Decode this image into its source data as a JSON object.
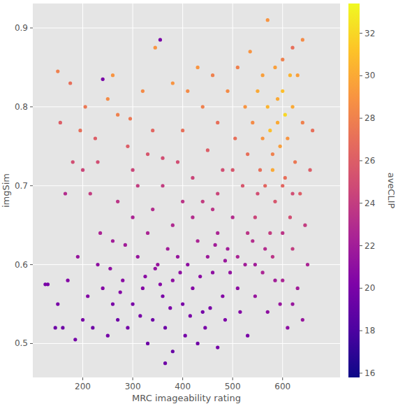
{
  "chart_data": {
    "type": "scatter",
    "x_label": "MRC imageability rating",
    "y_label": "imgSim",
    "xlim": [
      100,
      715
    ],
    "ylim": [
      0.457,
      0.931
    ],
    "xticks": [
      200,
      300,
      400,
      500,
      600
    ],
    "yticks": [
      0.5,
      0.6,
      0.7,
      0.8,
      0.9
    ],
    "grid": true,
    "marker": "circle",
    "colorbar": {
      "label": "aveCLIP",
      "range": [
        15.8,
        33.4
      ],
      "ticks": [
        16,
        18,
        20,
        22,
        24,
        26,
        28,
        30,
        32
      ]
    },
    "x": [
      300,
      320,
      340,
      360,
      380,
      400,
      420,
      440,
      460,
      480,
      350,
      370,
      390,
      410,
      430,
      450,
      470,
      490,
      310,
      330,
      280,
      260,
      240,
      270,
      290,
      365,
      405,
      445,
      485,
      510,
      525,
      540,
      500,
      460,
      420,
      380,
      340,
      300,
      260,
      230,
      210,
      200,
      220,
      250,
      330,
      380,
      430,
      470,
      395,
      355,
      315,
      435,
      455,
      375,
      345,
      285,
      495,
      515,
      545,
      560,
      580,
      600,
      620,
      570,
      595,
      610,
      235,
      190,
      170,
      150,
      130,
      160,
      185,
      165,
      180,
      195,
      155,
      150,
      175,
      205,
      225,
      250,
      270,
      295,
      320,
      260,
      240,
      345,
      355,
      300,
      330,
      360,
      390,
      420,
      450,
      480,
      400,
      440,
      470,
      380,
      490,
      505,
      520,
      530,
      540,
      550,
      560,
      570,
      580,
      590,
      600,
      610,
      620,
      630,
      640,
      565,
      585,
      605,
      625,
      545,
      575,
      615,
      635,
      555,
      595,
      575,
      590,
      570,
      600,
      620,
      640,
      660,
      655,
      645,
      650,
      630,
      640,
      560,
      535,
      510,
      525,
      585,
      615,
      605,
      580,
      550,
      600,
      620,
      125,
      145,
      270,
      215,
      200,
      230,
      310,
      340,
      290,
      410,
      430,
      460,
      500,
      470,
      440,
      400,
      360,
      530,
      510,
      530,
      365,
      600,
      565,
      585,
      415,
      325,
      275,
      255,
      465,
      485,
      545,
      620
    ],
    "y": [
      0.55,
      0.57,
      0.53,
      0.56,
      0.58,
      0.55,
      0.57,
      0.54,
      0.59,
      0.56,
      0.6,
      0.62,
      0.61,
      0.6,
      0.63,
      0.61,
      0.64,
      0.62,
      0.61,
      0.64,
      0.58,
      0.55,
      0.57,
      0.53,
      0.52,
      0.52,
      0.51,
      0.52,
      0.53,
      0.57,
      0.6,
      0.63,
      0.66,
      0.67,
      0.66,
      0.65,
      0.67,
      0.66,
      0.63,
      0.6,
      0.56,
      0.53,
      0.52,
      0.51,
      0.5,
      0.49,
      0.5,
      0.495,
      0.59,
      0.575,
      0.535,
      0.585,
      0.545,
      0.545,
      0.595,
      0.625,
      0.59,
      0.54,
      0.56,
      0.59,
      0.61,
      0.58,
      0.62,
      0.54,
      0.55,
      0.52,
      0.64,
      0.61,
      0.58,
      0.55,
      0.575,
      0.52,
      0.505,
      0.69,
      0.73,
      0.77,
      0.78,
      0.845,
      0.83,
      0.8,
      0.76,
      0.81,
      0.79,
      0.785,
      0.82,
      0.84,
      0.835,
      0.875,
      0.885,
      0.72,
      0.74,
      0.7,
      0.73,
      0.71,
      0.745,
      0.72,
      0.77,
      0.8,
      0.78,
      0.83,
      0.82,
      0.76,
      0.7,
      0.74,
      0.78,
      0.82,
      0.76,
      0.8,
      0.74,
      0.78,
      0.82,
      0.76,
      0.8,
      0.84,
      0.78,
      0.7,
      0.68,
      0.71,
      0.73,
      0.66,
      0.64,
      0.66,
      0.69,
      0.72,
      0.75,
      0.77,
      0.81,
      0.91,
      0.86,
      0.875,
      0.885,
      0.77,
      0.72,
      0.65,
      0.6,
      0.57,
      0.53,
      0.84,
      0.87,
      0.85,
      0.8,
      0.85,
      0.84,
      0.79,
      0.72,
      0.69,
      0.7,
      0.69,
      0.575,
      0.52,
      0.68,
      0.69,
      0.72,
      0.73,
      0.7,
      0.77,
      0.75,
      0.82,
      0.85,
      0.84,
      0.72,
      0.69,
      0.68,
      0.68,
      0.735,
      0.64,
      0.61,
      0.51,
      0.475,
      0.64,
      0.62,
      0.58,
      0.535,
      0.585,
      0.565,
      0.595,
      0.625,
      0.605,
      0.6,
      0.55
    ],
    "c": [
      20,
      20.5,
      19.5,
      20,
      21,
      20,
      20.5,
      19.8,
      21,
      20.5,
      21.5,
      22,
      21.5,
      21,
      22.5,
      21.8,
      22.5,
      22,
      21.5,
      22.5,
      20.8,
      20,
      20.5,
      19.5,
      19.8,
      19.5,
      19.8,
      20,
      20.2,
      21,
      22,
      23,
      23,
      23.5,
      23,
      22.8,
      23,
      22.5,
      22,
      21,
      20.5,
      20,
      19.5,
      19.8,
      19.5,
      19.2,
      19.6,
      19.8,
      21,
      20.6,
      19.9,
      20.8,
      20,
      20.1,
      21.2,
      22,
      21.2,
      20.5,
      21.5,
      22.5,
      23.5,
      22.5,
      24,
      21,
      21.5,
      21,
      22.5,
      21.5,
      20.5,
      20,
      20,
      19.5,
      19.8,
      23,
      25,
      27,
      26,
      28,
      27,
      27.5,
      26,
      28.5,
      28,
      27.5,
      28.5,
      29,
      20,
      29,
      20,
      24.5,
      25.5,
      24,
      25,
      24.5,
      26,
      25,
      27,
      28,
      27,
      29,
      28.5,
      27,
      25.5,
      27,
      28.5,
      30,
      29,
      30.5,
      28,
      30,
      31,
      29,
      30,
      29.5,
      28,
      26.5,
      25.5,
      27,
      27.5,
      24.5,
      24,
      25,
      26,
      27,
      29.5,
      31,
      30,
      29,
      28,
      27,
      28.5,
      27,
      26,
      24,
      22.5,
      22,
      21.5,
      29.5,
      29,
      28,
      29,
      29.5,
      30.5,
      32,
      30,
      25,
      26.5,
      25,
      20,
      19.5,
      23.5,
      24,
      24.5,
      25,
      24,
      26.5,
      26,
      28.5,
      29,
      28,
      25.5,
      24.5,
      24,
      23.5,
      25,
      23.5,
      22.5,
      20,
      19.5,
      23.5,
      23,
      22,
      20,
      20.8,
      20.5,
      21,
      22,
      21.6,
      22,
      21.5
    ]
  }
}
